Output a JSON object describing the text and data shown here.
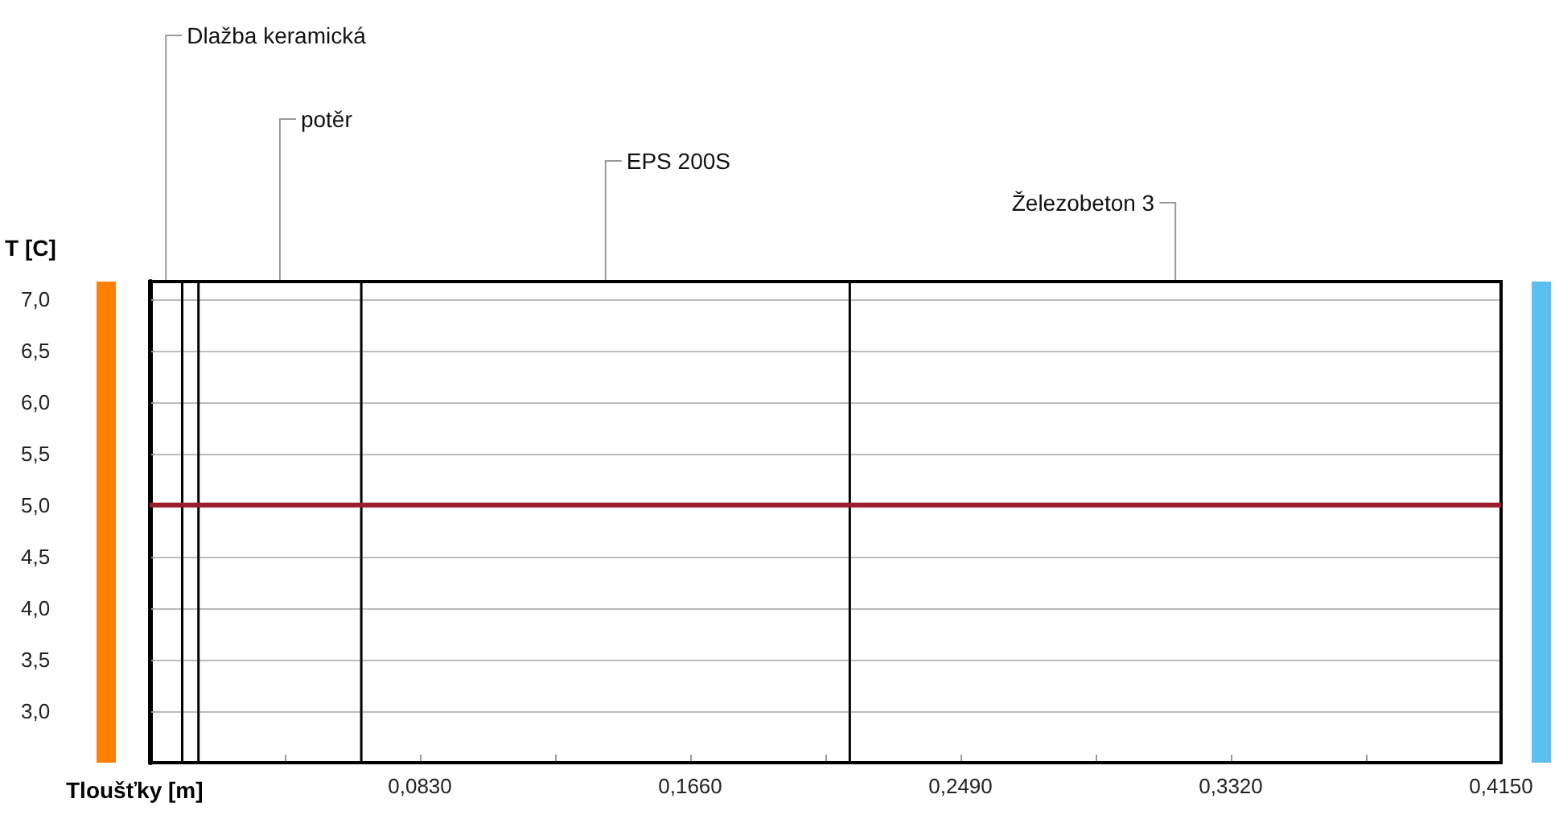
{
  "chart_data": {
    "type": "line",
    "ylabel": "T [C]",
    "xlabel": "Tloušťky [m]",
    "series": [
      {
        "color": "#9b1c2c",
        "x": [
          0,
          0.415
        ],
        "values": [
          5,
          5
        ]
      }
    ],
    "xlim": [
      0,
      0.415
    ],
    "xticks": [
      {
        "value": 0.0415,
        "label": null
      },
      {
        "value": 0.083,
        "label": "0,0830"
      },
      {
        "value": 0.1245,
        "label": null
      },
      {
        "value": 0.166,
        "label": "0,1660"
      },
      {
        "value": 0.2075,
        "label": null
      },
      {
        "value": 0.249,
        "label": "0,2490"
      },
      {
        "value": 0.2905,
        "label": null
      },
      {
        "value": 0.332,
        "label": "0,3320"
      },
      {
        "value": 0.3735,
        "label": null
      },
      {
        "value": 0.415,
        "label": "0,4150"
      }
    ],
    "ylim": [
      2.5,
      7.17
    ],
    "yticks": [
      {
        "value": 3,
        "label": "3,0"
      },
      {
        "value": 3.5,
        "label": "3,5"
      },
      {
        "value": 4,
        "label": "4,0"
      },
      {
        "value": 4.5,
        "label": "4,5"
      },
      {
        "value": 5,
        "label": "5,0"
      },
      {
        "value": 5.5,
        "label": "5,5"
      },
      {
        "value": 6,
        "label": "6,0"
      },
      {
        "value": 6.5,
        "label": "6,5"
      },
      {
        "value": 7,
        "label": "7,0"
      }
    ],
    "ref_lines": [
      {
        "axis": "x",
        "value": 0.01,
        "label": null,
        "color": "#000000"
      },
      {
        "axis": "x",
        "value": 0.015,
        "label": null,
        "color": "#000000"
      },
      {
        "axis": "x",
        "value": 0.065,
        "label": null,
        "color": "#000000"
      },
      {
        "axis": "x",
        "value": 0.215,
        "label": null,
        "color": "#000000"
      }
    ],
    "annotations": [
      "Dlažba keramická",
      null,
      "potěr",
      "EPS 200S",
      "Železobeton 3"
    ],
    "grid": "y",
    "marker": "none"
  }
}
